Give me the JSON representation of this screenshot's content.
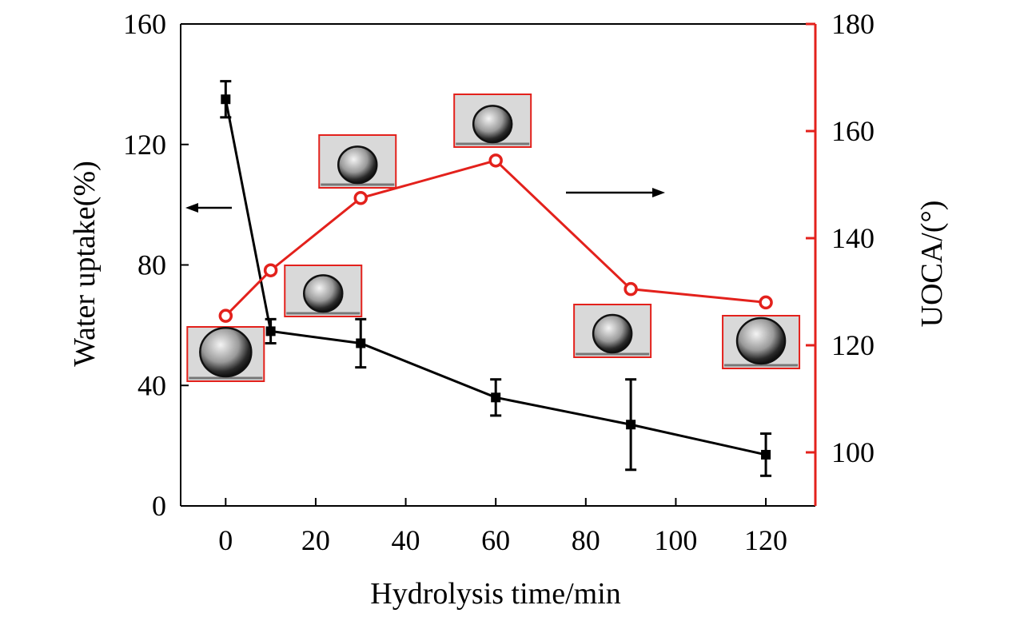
{
  "chart_data": {
    "type": "line",
    "title": "",
    "xlabel": "Hydrolysis time/min",
    "ylabel_left": "Water uptake(%)",
    "ylabel_right": "UOCA/(°)",
    "xlim": [
      -10,
      131
    ],
    "ylim_left": [
      0,
      160
    ],
    "ylim_right": [
      90,
      180
    ],
    "x_ticks": [
      0,
      20,
      40,
      60,
      80,
      100,
      120
    ],
    "y_ticks_left": [
      0,
      40,
      80,
      120,
      160
    ],
    "y_ticks_right": [
      100,
      120,
      140,
      160,
      180
    ],
    "grid": false,
    "series": [
      {
        "name": "Water uptake",
        "axis": "left",
        "marker": "filled-square",
        "color": "#000000",
        "x": [
          0,
          10,
          30,
          60,
          90,
          120
        ],
        "values": [
          135,
          58,
          54,
          36,
          27,
          17
        ],
        "errors": [
          6,
          4,
          8,
          6,
          15,
          7
        ]
      },
      {
        "name": "UOCA",
        "axis": "right",
        "marker": "open-circle",
        "color": "#e3211c",
        "x": [
          0,
          10,
          30,
          60,
          90,
          120
        ],
        "values": [
          125.5,
          134,
          147.5,
          154.5,
          130.5,
          128
        ]
      }
    ],
    "annotations": [
      {
        "type": "arrow",
        "direction": "left",
        "points_to": "left-axis"
      },
      {
        "type": "arrow",
        "direction": "right",
        "points_to": "right-axis"
      },
      {
        "type": "droplet-inset",
        "count": 6
      }
    ]
  }
}
